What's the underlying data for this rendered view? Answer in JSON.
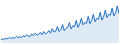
{
  "chart_data": {
    "type": "line",
    "values": [
      8,
      10,
      9,
      12,
      10,
      14,
      11,
      13,
      12,
      16,
      13,
      15,
      14,
      18,
      15,
      20,
      17,
      16,
      22,
      18,
      24,
      19,
      21,
      26,
      20,
      28,
      22,
      25,
      30,
      24,
      35,
      27,
      29,
      40,
      28,
      33,
      45,
      30,
      36,
      38,
      50,
      34,
      42,
      40,
      55,
      38,
      46,
      60,
      44,
      50,
      48,
      65,
      47,
      55,
      70,
      52,
      60,
      58,
      75,
      56,
      64,
      80,
      62,
      70,
      68,
      85,
      66,
      74,
      90,
      72
    ],
    "color": "#1f6fc5",
    "ylim": [
      0,
      100
    ],
    "tick_labels": false,
    "grid": false
  }
}
